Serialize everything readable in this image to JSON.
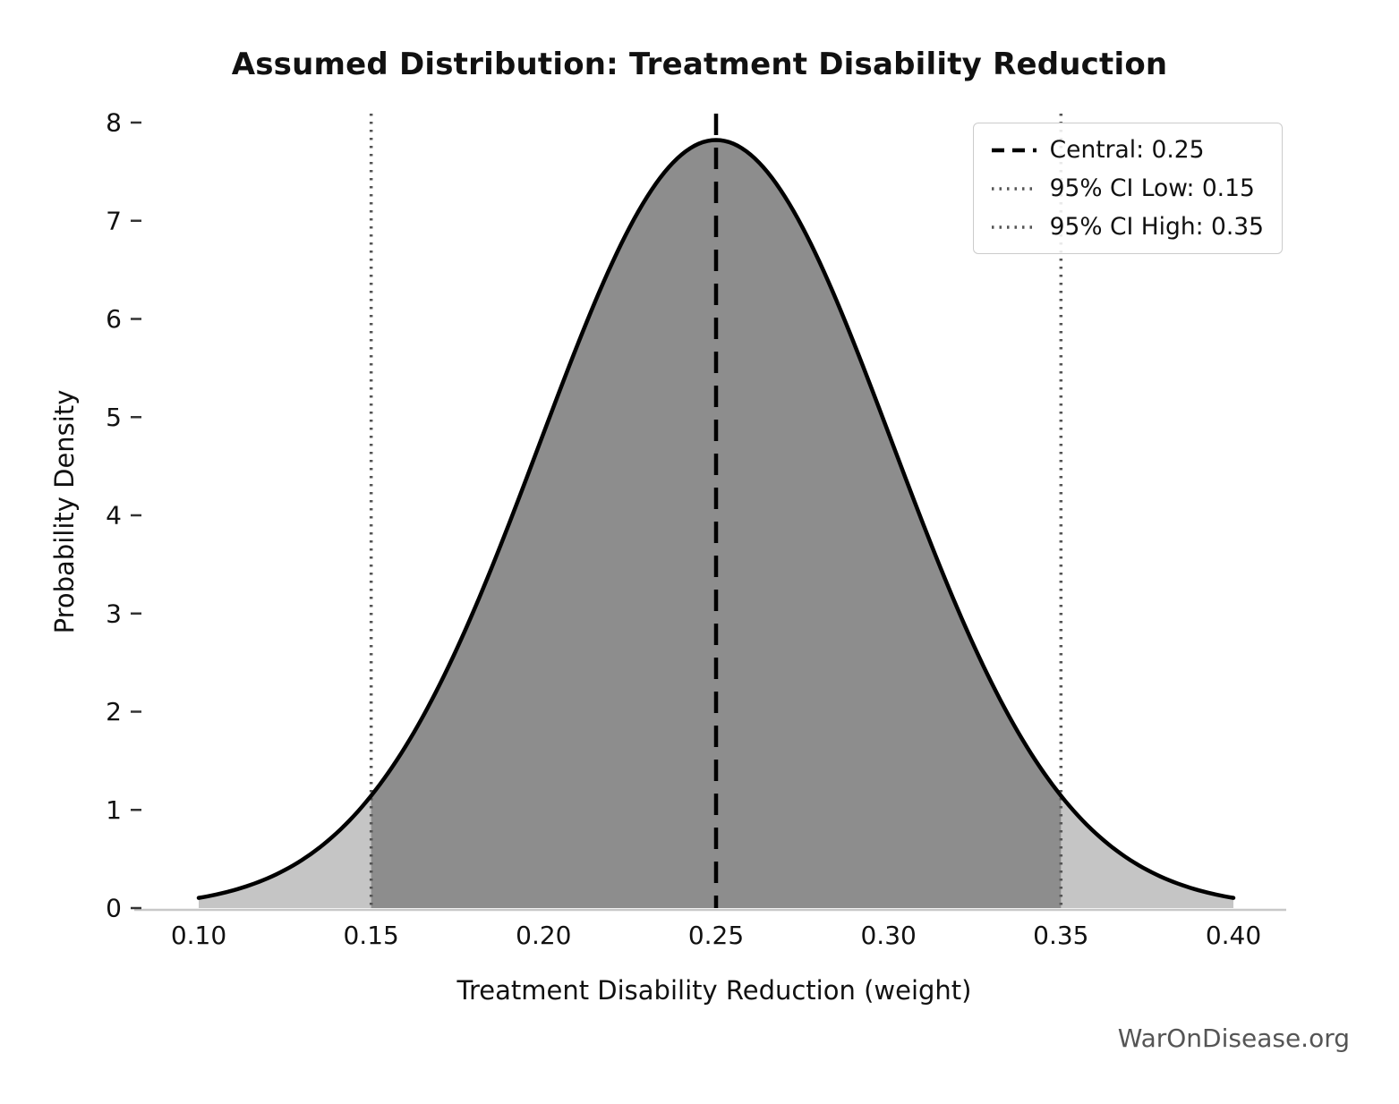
{
  "chart_data": {
    "type": "area",
    "title": "Assumed Distribution: Treatment Disability Reduction",
    "xlabel": "Treatment Disability Reduction (weight)",
    "ylabel": "Probability Density",
    "watermark": "WarOnDisease.org",
    "x_ticks": [
      0.1,
      0.15,
      0.2,
      0.25,
      0.3,
      0.35,
      0.4
    ],
    "x_tick_labels": [
      "0.10",
      "0.15",
      "0.20",
      "0.25",
      "0.30",
      "0.35",
      "0.40"
    ],
    "y_ticks": [
      0,
      1,
      2,
      3,
      4,
      5,
      6,
      7,
      8
    ],
    "y_tick_labels": [
      "0",
      "1",
      "2",
      "3",
      "4",
      "5",
      "6",
      "7",
      "8"
    ],
    "xlim": [
      0.1,
      0.4
    ],
    "ylim": [
      0,
      8.1
    ],
    "curve_range": [
      0.1,
      0.4
    ],
    "distribution": {
      "shape": "normal",
      "mean": 0.25,
      "sd": 0.051,
      "peak_density": 7.82
    },
    "central": 0.25,
    "ci_low": 0.15,
    "ci_high": 0.35,
    "shaded_region": {
      "from": 0.15,
      "to": 0.35,
      "meaning": "95% CI"
    },
    "legend": [
      {
        "label": "Central: 0.25",
        "style": "dashed"
      },
      {
        "label": "95% CI Low: 0.15",
        "style": "dotted"
      },
      {
        "label": "95% CI High: 0.35",
        "style": "dotted"
      }
    ],
    "grid": "off",
    "legend_position": "upper right",
    "colors": {
      "curve": "#000000",
      "fill_outer": "#c5c5c5",
      "fill_inner": "#8d8d8d",
      "central_line": "#000000",
      "ci_line": "#555555",
      "spine": "#c8c8c8",
      "tick": "#333333",
      "text": "#111111",
      "watermark": "#555555",
      "legend_border": "#cccccc"
    }
  }
}
